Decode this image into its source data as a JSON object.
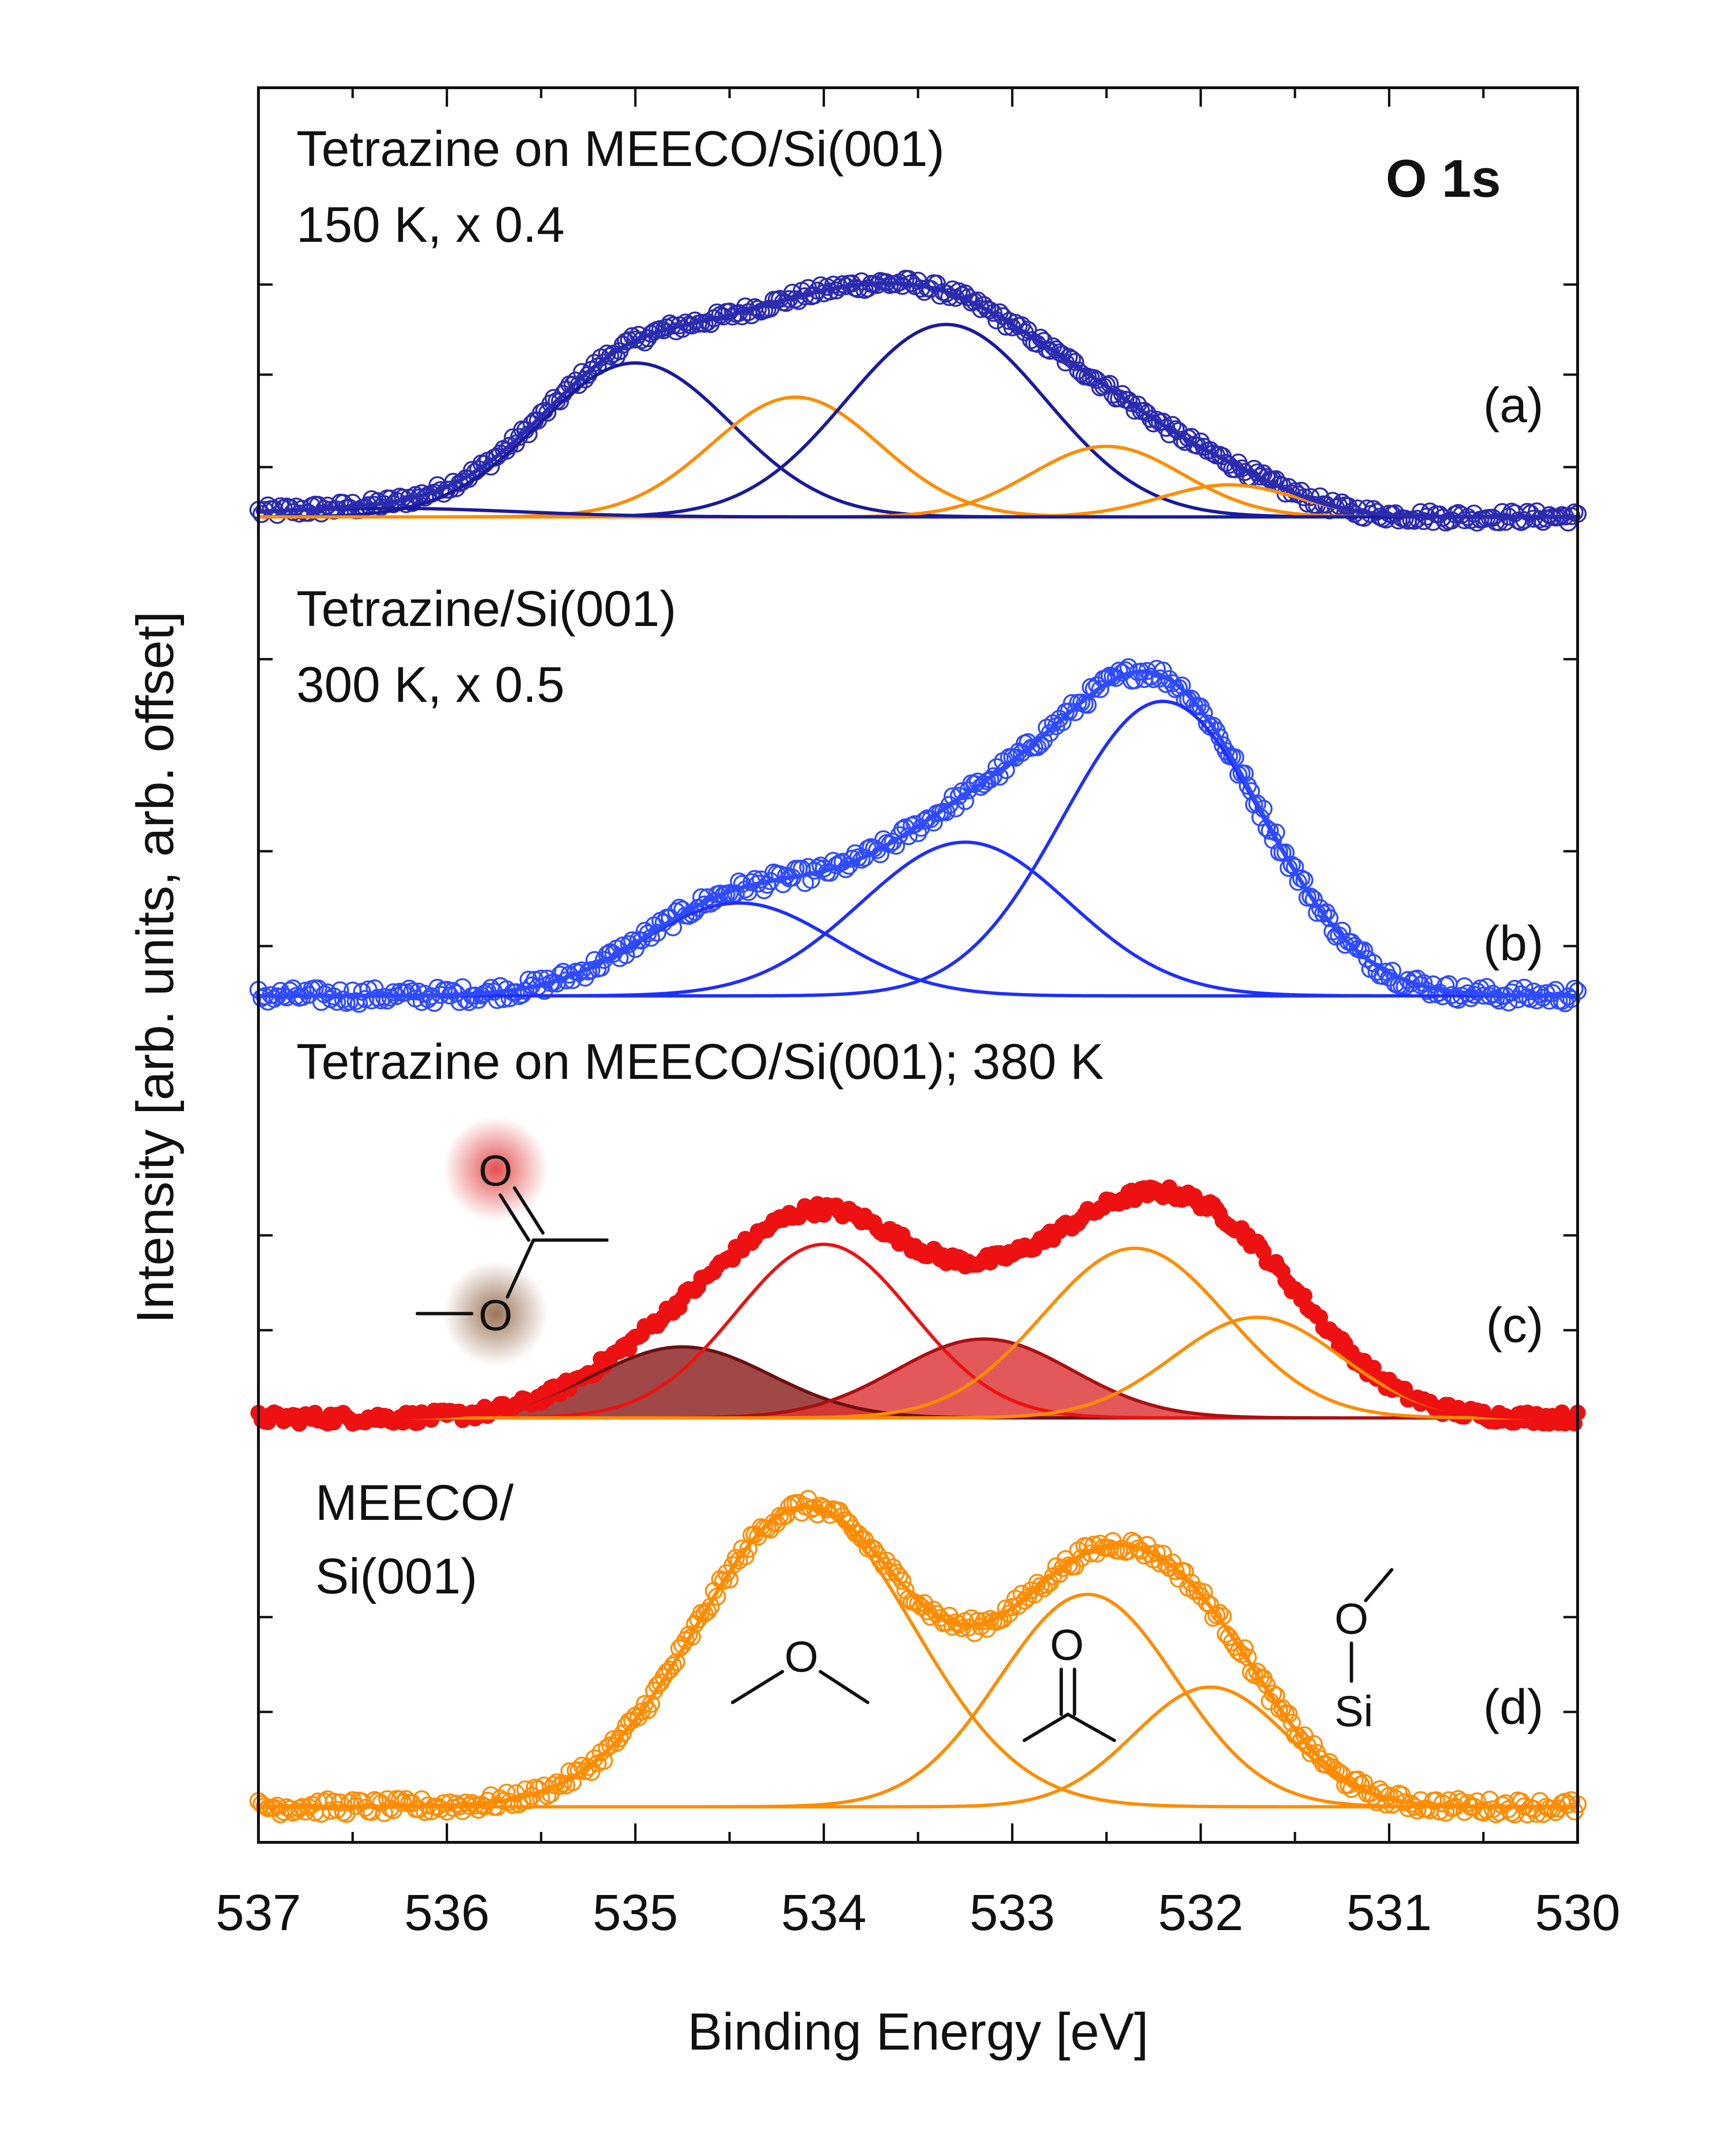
{
  "chart_data": {
    "type": "line",
    "subtype": "XPS spectra with Gaussian peak fits, stacked panels",
    "title": "O 1s",
    "xlabel": "Binding Energy [eV]",
    "ylabel": "Intensity [arb. units, arb. offset]",
    "xlim": [
      537,
      530
    ],
    "x_ticks": [
      "537",
      "536",
      "535",
      "534",
      "533",
      "532",
      "531",
      "530"
    ],
    "x_tick_values": [
      537,
      536,
      535,
      534,
      533,
      532,
      531,
      530
    ],
    "panels": [
      {
        "id": "a",
        "label": "(a)",
        "title_lines": [
          "Tetrazine on MEECO/Si(001)",
          "150 K, x 0.4"
        ],
        "data_color": "#2b2bb0",
        "marker": "open-circle",
        "envelope": 0.88,
        "components": [
          {
            "center": 535.0,
            "fwhm": 1.2,
            "height": 0.72,
            "color": "#1a1a9e",
            "fill": null
          },
          {
            "center": 534.15,
            "fwhm": 1.05,
            "height": 0.56,
            "color": "#ff8c00",
            "fill": null
          },
          {
            "center": 533.35,
            "fwhm": 1.25,
            "height": 0.9,
            "color": "#1a1a9e",
            "fill": null
          },
          {
            "center": 532.5,
            "fwhm": 0.95,
            "height": 0.33,
            "color": "#ff8c00",
            "fill": null
          },
          {
            "center": 531.85,
            "fwhm": 0.85,
            "height": 0.15,
            "color": "#ff8c00",
            "fill": null
          },
          {
            "center": 536.3,
            "fwhm": 1.6,
            "height": 0.04,
            "color": "#1a1a9e",
            "fill": null
          }
        ]
      },
      {
        "id": "b",
        "label": "(b)",
        "title_lines": [
          "Tetrazine/Si(001)",
          "300 K,  x 0.5"
        ],
        "data_color": "#2f4bff",
        "marker": "open-circle",
        "envelope": 0.9,
        "components": [
          {
            "center": 534.45,
            "fwhm": 1.2,
            "height": 0.29,
            "color": "#1f2fff",
            "fill": null
          },
          {
            "center": 533.25,
            "fwhm": 1.3,
            "height": 0.48,
            "color": "#1f2fff",
            "fill": null
          },
          {
            "center": 532.2,
            "fwhm": 1.25,
            "height": 0.92,
            "color": "#1f2fff",
            "fill": null
          }
        ]
      },
      {
        "id": "c",
        "label": "(c)",
        "title_lines": [
          "Tetrazine on MEECO/Si(001); 380 K"
        ],
        "data_color": "#ee1111",
        "marker": "filled-circle",
        "envelope": 0.85,
        "components": [
          {
            "center": 534.75,
            "fwhm": 1.1,
            "height": 0.36,
            "color": "#6b1010",
            "fill": "#8b2020"
          },
          {
            "center": 534.0,
            "fwhm": 1.1,
            "height": 0.88,
            "color": "#ee1111",
            "fill": null
          },
          {
            "center": 533.15,
            "fwhm": 1.1,
            "height": 0.4,
            "color": "#aa1010",
            "fill": "#dd3333"
          },
          {
            "center": 532.35,
            "fwhm": 1.15,
            "height": 0.86,
            "color": "#ff8c00",
            "fill": null
          },
          {
            "center": 531.7,
            "fwhm": 1.05,
            "height": 0.51,
            "color": "#ff8c00",
            "fill": null
          }
        ],
        "inset_molecule": "methyl acetate (ester) with highlighted O atoms"
      },
      {
        "id": "d",
        "label": "(d)",
        "title_lines": [
          "MEECO/",
          "Si(001)"
        ],
        "data_color": "#ff8c00",
        "marker": "open-circle",
        "envelope": 0.88,
        "components": [
          {
            "center": 534.1,
            "fwhm": 1.35,
            "height": 1.0,
            "color": "#ff8c00",
            "fill": null
          },
          {
            "center": 532.6,
            "fwhm": 1.1,
            "height": 0.71,
            "color": "#ff8c00",
            "fill": null
          },
          {
            "center": 531.95,
            "fwhm": 0.95,
            "height": 0.4,
            "color": "#ff8c00",
            "fill": null
          }
        ],
        "annotations": [
          "ether C–O–C",
          "carbonyl C=O",
          "Si–O–C"
        ]
      }
    ],
    "grid": false
  },
  "molecule_labels": {
    "oxygen": "O",
    "silicon": "Si"
  }
}
